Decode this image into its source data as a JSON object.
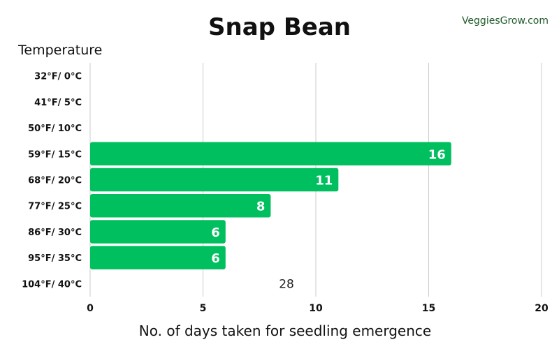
{
  "brand": "VeggiesGrow.com",
  "colors": {
    "bar": "#00BF5F",
    "grid": "#cccccc",
    "brand": "#1e5a2a"
  },
  "chart_data": {
    "type": "bar",
    "orientation": "horizontal",
    "title": "Snap Bean",
    "ylabel": "Temperature",
    "xlabel": "No. of days taken for seedling emergence",
    "categories": [
      "32°F/ 0°C",
      "41°F/ 5°C",
      "50°F/ 10°C",
      "59°F/ 15°C",
      "68°F/ 20°C",
      "77°F/ 25°C",
      "86°F/ 30°C",
      "95°F/ 35°C",
      "104°F/ 40°C"
    ],
    "values": [
      null,
      null,
      null,
      16,
      11,
      8,
      6,
      6,
      null
    ],
    "data_labels": [
      "",
      "",
      "",
      "16",
      "11",
      "8",
      "6",
      "6",
      ""
    ],
    "xticks": [
      0,
      5,
      10,
      15,
      20
    ],
    "xlim": [
      0,
      20
    ],
    "grid": "vertical",
    "annotations": [
      {
        "category": "104°F/ 40°C",
        "x": 8.7,
        "text": "28"
      }
    ]
  }
}
